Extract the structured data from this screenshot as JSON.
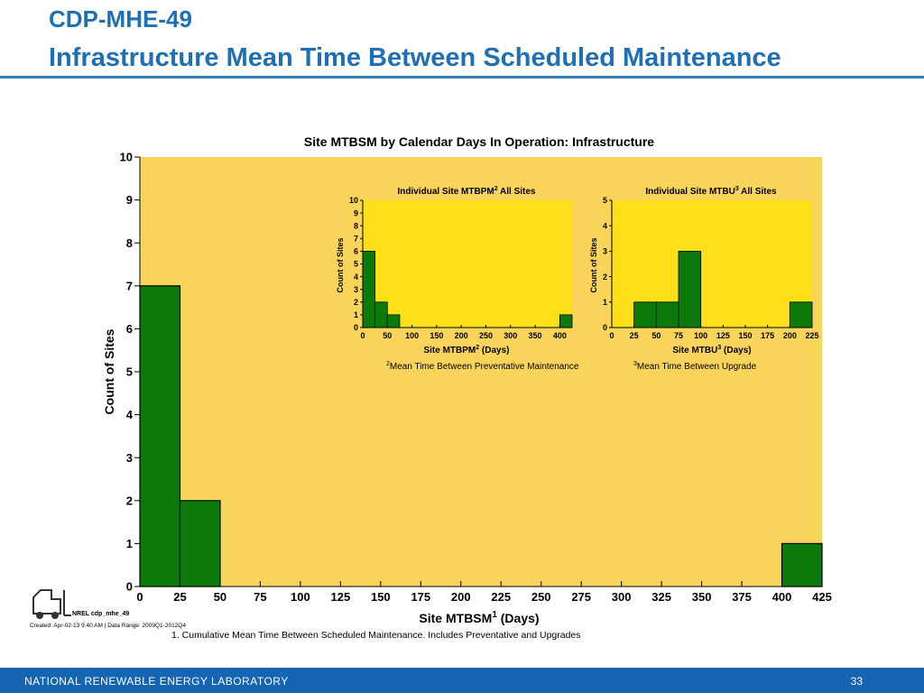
{
  "slide": {
    "title_line1": "CDP-MHE-49",
    "title_line2": "Infrastructure Mean Time Between Scheduled Maintenance",
    "footer_org": "NATIONAL RENEWABLE ENERGY LABORATORY",
    "page_number": "33",
    "logo_text": "NREL cdp_mhe_49",
    "created_text": "Created: Apr-02-13  9:40 AM | Data Range: 2009Q1-2012Q4",
    "footnote": "1. Cumulative Mean Time Between Scheduled Maintenance.  Includes Preventative and Upgrades",
    "colors": {
      "title": "#1f6fb5",
      "footer": "#1565b3",
      "main_bg": "#f9d45a",
      "inset_bg": "#fde01a",
      "bar": "#0b7a0b"
    }
  },
  "chart_data": [
    {
      "type": "bar",
      "title": "Site MTBSM by Calendar Days In Operation: Infrastructure",
      "xlabel": "Site MTBSM",
      "xlabel_sup": "1",
      "xlabel_suffix": " (Days)",
      "ylabel": "Count of Sites",
      "xlim": [
        0,
        425
      ],
      "ylim": [
        0,
        10
      ],
      "xticks": [
        0,
        25,
        50,
        75,
        100,
        125,
        150,
        175,
        200,
        225,
        250,
        275,
        300,
        325,
        350,
        375,
        400,
        425
      ],
      "yticks": [
        0,
        1,
        2,
        3,
        4,
        5,
        6,
        7,
        8,
        9,
        10
      ],
      "bins": [
        {
          "x0": 0,
          "x1": 25,
          "count": 7
        },
        {
          "x0": 25,
          "x1": 50,
          "count": 2
        },
        {
          "x0": 400,
          "x1": 425,
          "count": 1
        }
      ]
    },
    {
      "type": "bar",
      "title": "Individual Site MTBPM",
      "title_sup": "2",
      "title_suffix": " All Sites",
      "xlabel": "Site MTBPM",
      "xlabel_sup": "2",
      "xlabel_suffix": " (Days)",
      "ylabel": "Count of Sites",
      "xlim": [
        0,
        425
      ],
      "ylim": [
        0,
        10
      ],
      "xticks": [
        0,
        50,
        100,
        150,
        200,
        250,
        300,
        350,
        400
      ],
      "yticks": [
        0,
        1,
        2,
        3,
        4,
        5,
        6,
        7,
        8,
        9,
        10
      ],
      "bins": [
        {
          "x0": 0,
          "x1": 25,
          "count": 6
        },
        {
          "x0": 25,
          "x1": 50,
          "count": 2
        },
        {
          "x0": 50,
          "x1": 75,
          "count": 1
        },
        {
          "x0": 400,
          "x1": 425,
          "count": 1
        }
      ],
      "note_sup": "2",
      "note": "Mean Time Between Preventative Maintenance"
    },
    {
      "type": "bar",
      "title": "Individual Site MTBU",
      "title_sup": "3",
      "title_suffix": " All Sites",
      "xlabel": "Site MTBU",
      "xlabel_sup": "3",
      "xlabel_suffix": " (Days)",
      "ylabel": "Count of Sites",
      "xlim": [
        0,
        225
      ],
      "ylim": [
        0,
        5
      ],
      "xticks": [
        0,
        25,
        50,
        75,
        100,
        125,
        150,
        175,
        200,
        225
      ],
      "yticks": [
        0,
        1,
        2,
        3,
        4,
        5
      ],
      "bins": [
        {
          "x0": 25,
          "x1": 50,
          "count": 1
        },
        {
          "x0": 50,
          "x1": 75,
          "count": 1
        },
        {
          "x0": 75,
          "x1": 100,
          "count": 3
        },
        {
          "x0": 200,
          "x1": 225,
          "count": 1
        }
      ],
      "note_sup": "3",
      "note": "Mean Time Between Upgrade"
    }
  ]
}
